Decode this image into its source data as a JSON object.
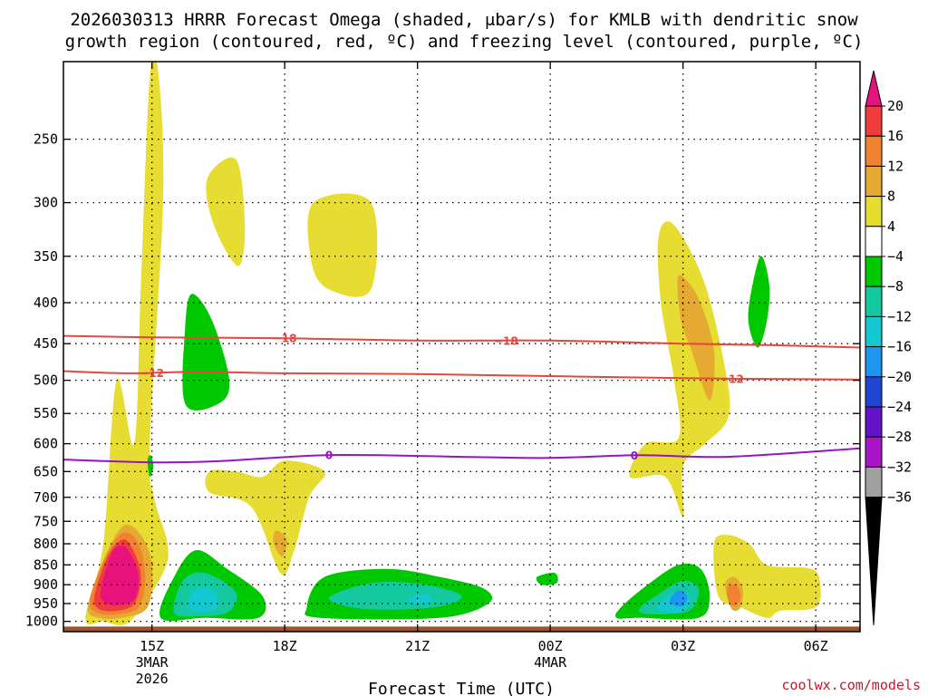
{
  "chart_data": {
    "type": "heatmap",
    "title_line1": "2026030313 HRRR Forecast Omega (shaded, μbar/s) for KMLB with dendritic snow",
    "title_line2": "growth region (contoured, red, ºC) and freezing level (contoured, purple, ºC)",
    "xlabel": "Forecast Time (UTC)",
    "credit": "coolwx.com/models",
    "x_range_hours": [
      13,
      31
    ],
    "x_ticks": [
      {
        "hour": 15,
        "label": "15Z",
        "sub1": "3MAR",
        "sub2": "2026"
      },
      {
        "hour": 18,
        "label": "18Z",
        "sub1": "",
        "sub2": ""
      },
      {
        "hour": 21,
        "label": "21Z",
        "sub1": "",
        "sub2": ""
      },
      {
        "hour": 24,
        "label": "00Z",
        "sub1": "4MAR",
        "sub2": ""
      },
      {
        "hour": 27,
        "label": "03Z",
        "sub1": "",
        "sub2": ""
      },
      {
        "hour": 30,
        "label": "06Z",
        "sub1": "",
        "sub2": ""
      }
    ],
    "y_axis": "pressure (hPa), log scale, inverted",
    "y_range_hpa": [
      200,
      1030
    ],
    "y_ticks": [
      250,
      300,
      350,
      400,
      450,
      500,
      550,
      600,
      650,
      700,
      750,
      800,
      850,
      900,
      950,
      1000
    ],
    "grid": true,
    "colorbar": {
      "levels": [
        20,
        16,
        12,
        8,
        4,
        -4,
        -8,
        -12,
        -16,
        -20,
        -24,
        -28,
        -32,
        -36
      ],
      "labels": [
        "20",
        "16",
        "12",
        "8",
        "4",
        "−4",
        "−8",
        "−12",
        "−16",
        "−20",
        "−24",
        "−28",
        "−32",
        "−36"
      ],
      "over_color": "#e8127c",
      "under_color": "#000000",
      "colors": [
        "#f03c3c",
        "#f08232",
        "#e6aa32",
        "#e6dc32",
        "#ffffff",
        "#00c800",
        "#14c8a0",
        "#14c8d2",
        "#1e96f0",
        "#1e46d2",
        "#6414c8",
        "#aa14c8",
        "#a0a0a0"
      ]
    },
    "contours": [
      {
        "name": "-18 C isotherm",
        "label": "−18",
        "color": "#e8463c",
        "points": [
          [
            13,
            440
          ],
          [
            15,
            442
          ],
          [
            18,
            443
          ],
          [
            21,
            446
          ],
          [
            24,
            446
          ],
          [
            27,
            450
          ],
          [
            29,
            452
          ],
          [
            31,
            455
          ]
        ],
        "label_hours": [
          18,
          23
        ]
      },
      {
        "name": "-12 C isotherm",
        "label": "−12",
        "color": "#e8463c",
        "points": [
          [
            13,
            487
          ],
          [
            14.5,
            490
          ],
          [
            16,
            488
          ],
          [
            18,
            490
          ],
          [
            21,
            491
          ],
          [
            24,
            494
          ],
          [
            27,
            497
          ],
          [
            29,
            498
          ],
          [
            31,
            499
          ]
        ],
        "label_hours": [
          15,
          28.1
        ]
      },
      {
        "name": "freezing level",
        "label": "0",
        "color": "#9614c8",
        "points": [
          [
            13,
            628
          ],
          [
            15,
            633
          ],
          [
            16.5,
            631
          ],
          [
            19,
            620
          ],
          [
            22,
            623
          ],
          [
            24,
            625
          ],
          [
            26,
            620
          ],
          [
            28,
            623
          ],
          [
            31,
            608
          ]
        ],
        "label_hours": [
          19,
          25.9
        ]
      }
    ],
    "omega_areas": [
      {
        "value": 4,
        "color": "#e6dc32",
        "points": [
          [
            13.5,
            990
          ],
          [
            13.9,
            800
          ],
          [
            14.2,
            500
          ],
          [
            14.6,
            600
          ],
          [
            14.75,
            380
          ],
          [
            14.95,
            210
          ],
          [
            15.15,
            208
          ],
          [
            15.25,
            300
          ],
          [
            14.95,
            600
          ],
          [
            15.05,
            700
          ],
          [
            15.35,
            800
          ],
          [
            15.25,
            870
          ],
          [
            14.5,
            1000
          ],
          [
            13.9,
            1000
          ]
        ]
      },
      {
        "value": 8,
        "color": "#e6aa32",
        "points": [
          [
            13.55,
            960
          ],
          [
            13.9,
            840
          ],
          [
            14.35,
            760
          ],
          [
            14.75,
            780
          ],
          [
            15.0,
            850
          ],
          [
            14.9,
            960
          ],
          [
            14.3,
            990
          ],
          [
            13.8,
            990
          ]
        ]
      },
      {
        "value": 12,
        "color": "#f08232",
        "points": [
          [
            13.6,
            940
          ],
          [
            13.95,
            830
          ],
          [
            14.35,
            775
          ],
          [
            14.7,
            800
          ],
          [
            14.85,
            880
          ],
          [
            14.7,
            960
          ],
          [
            14.2,
            980
          ],
          [
            13.75,
            975
          ]
        ]
      },
      {
        "value": 16,
        "color": "#f03c3c",
        "points": [
          [
            13.7,
            930
          ],
          [
            14.0,
            830
          ],
          [
            14.35,
            790
          ],
          [
            14.6,
            820
          ],
          [
            14.75,
            880
          ],
          [
            14.6,
            950
          ],
          [
            14.2,
            970
          ],
          [
            13.8,
            965
          ]
        ]
      },
      {
        "value": 20,
        "color": "#e8127c",
        "points": [
          [
            13.85,
            910
          ],
          [
            14.1,
            820
          ],
          [
            14.35,
            805
          ],
          [
            14.55,
            830
          ],
          [
            14.7,
            880
          ],
          [
            14.6,
            940
          ],
          [
            14.2,
            955
          ],
          [
            13.9,
            945
          ]
        ]
      },
      {
        "value": 4,
        "color": "#e6dc32",
        "points": [
          [
            16.25,
            280
          ],
          [
            16.9,
            265
          ],
          [
            17.1,
            320
          ],
          [
            16.95,
            360
          ],
          [
            16.4,
            320
          ]
        ]
      },
      {
        "value": 4,
        "color": "#e6dc32",
        "points": [
          [
            18.65,
            300
          ],
          [
            19.95,
            300
          ],
          [
            19.95,
            385
          ],
          [
            19.0,
            385
          ],
          [
            18.6,
            355
          ]
        ]
      },
      {
        "value": 4,
        "color": "#e6dc32",
        "points": [
          [
            16.3,
            650
          ],
          [
            16.9,
            650
          ],
          [
            17.5,
            660
          ],
          [
            18.0,
            630
          ],
          [
            18.9,
            650
          ],
          [
            18.55,
            700
          ],
          [
            18.2,
            820
          ],
          [
            17.9,
            870
          ],
          [
            17.25,
            720
          ],
          [
            16.3,
            690
          ]
        ]
      },
      {
        "value": 8,
        "color": "#e6aa32",
        "points": [
          [
            17.8,
            770
          ],
          [
            18.05,
            790
          ],
          [
            17.95,
            830
          ],
          [
            17.75,
            800
          ]
        ]
      },
      {
        "value": -4,
        "color": "#00c800",
        "points": [
          [
            15.9,
            390
          ],
          [
            16.35,
            420
          ],
          [
            16.75,
            500
          ],
          [
            16.5,
            535
          ],
          [
            15.75,
            535
          ],
          [
            15.75,
            430
          ]
        ]
      },
      {
        "value": -4,
        "color": "#00c800",
        "points": [
          [
            14.9,
            630
          ],
          [
            14.97,
            620
          ],
          [
            15.03,
            640
          ],
          [
            14.95,
            660
          ]
        ]
      },
      {
        "value": -4,
        "color": "#00c800",
        "points": [
          [
            15.2,
            990
          ],
          [
            15.5,
            880
          ],
          [
            16.0,
            815
          ],
          [
            16.7,
            860
          ],
          [
            17.5,
            930
          ],
          [
            17.4,
            990
          ],
          [
            16.2,
            990
          ]
        ]
      },
      {
        "value": -8,
        "color": "#14c8a0",
        "points": [
          [
            15.5,
            975
          ],
          [
            15.7,
            890
          ],
          [
            16.2,
            870
          ],
          [
            16.9,
            920
          ],
          [
            16.7,
            975
          ],
          [
            16.0,
            985
          ]
        ]
      },
      {
        "value": -12,
        "color": "#14c8d2",
        "points": [
          [
            15.8,
            960
          ],
          [
            16.0,
            910
          ],
          [
            16.4,
            915
          ],
          [
            16.5,
            955
          ],
          [
            16.2,
            975
          ]
        ]
      },
      {
        "value": -4,
        "color": "#00c800",
        "points": [
          [
            18.5,
            960
          ],
          [
            18.9,
            880
          ],
          [
            20.3,
            860
          ],
          [
            21.5,
            880
          ],
          [
            22.5,
            910
          ],
          [
            22.6,
            950
          ],
          [
            21.5,
            990
          ],
          [
            18.8,
            990
          ]
        ]
      },
      {
        "value": -8,
        "color": "#14c8a0",
        "points": [
          [
            19.0,
            935
          ],
          [
            20.0,
            895
          ],
          [
            21.2,
            900
          ],
          [
            22.0,
            930
          ],
          [
            21.4,
            960
          ],
          [
            19.8,
            965
          ]
        ]
      },
      {
        "value": -12,
        "color": "#14c8d2",
        "points": [
          [
            20.8,
            935
          ],
          [
            21.2,
            925
          ],
          [
            21.3,
            945
          ],
          [
            20.9,
            950
          ]
        ]
      },
      {
        "value": -4,
        "color": "#00c800",
        "points": [
          [
            23.7,
            880
          ],
          [
            24.1,
            870
          ],
          [
            24.15,
            895
          ],
          [
            23.8,
            900
          ]
        ]
      },
      {
        "value": 4,
        "color": "#e6dc32",
        "points": [
          [
            25.8,
            660
          ],
          [
            26.15,
            600
          ],
          [
            26.9,
            590
          ],
          [
            26.8,
            500
          ],
          [
            26.5,
            400
          ],
          [
            26.45,
            330
          ],
          [
            26.8,
            320
          ],
          [
            27.5,
            380
          ],
          [
            28.0,
            500
          ],
          [
            28.0,
            560
          ],
          [
            27.5,
            600
          ],
          [
            27.0,
            640
          ],
          [
            27.0,
            740
          ],
          [
            26.6,
            660
          ]
        ]
      },
      {
        "value": 8,
        "color": "#e6aa32",
        "points": [
          [
            26.9,
            370
          ],
          [
            27.35,
            395
          ],
          [
            27.7,
            460
          ],
          [
            27.6,
            530
          ],
          [
            27.2,
            460
          ],
          [
            26.95,
            420
          ]
        ]
      },
      {
        "value": -4,
        "color": "#00c800",
        "points": [
          [
            28.5,
            400
          ],
          [
            28.75,
            350
          ],
          [
            28.95,
            380
          ],
          [
            28.9,
            420
          ],
          [
            28.7,
            455
          ],
          [
            28.5,
            430
          ]
        ]
      },
      {
        "value": -4,
        "color": "#00c800",
        "points": [
          [
            25.5,
            990
          ],
          [
            25.6,
            960
          ],
          [
            26.2,
            900
          ],
          [
            26.9,
            850
          ],
          [
            27.4,
            860
          ],
          [
            27.6,
            930
          ],
          [
            27.35,
            990
          ],
          [
            26.0,
            990
          ]
        ]
      },
      {
        "value": -8,
        "color": "#14c8a0",
        "points": [
          [
            26.0,
            970
          ],
          [
            26.5,
            920
          ],
          [
            27.0,
            890
          ],
          [
            27.35,
            910
          ],
          [
            27.2,
            965
          ],
          [
            26.6,
            980
          ]
        ]
      },
      {
        "value": -12,
        "color": "#14c8d2",
        "points": [
          [
            26.4,
            960
          ],
          [
            26.8,
            920
          ],
          [
            27.15,
            925
          ],
          [
            27.1,
            960
          ],
          [
            26.8,
            975
          ]
        ]
      },
      {
        "value": -16,
        "color": "#1e96f0",
        "points": [
          [
            26.7,
            940
          ],
          [
            26.9,
            915
          ],
          [
            27.1,
            930
          ],
          [
            27.0,
            955
          ],
          [
            26.8,
            955
          ]
        ]
      },
      {
        "value": 4,
        "color": "#e6dc32",
        "points": [
          [
            27.7,
            800
          ],
          [
            28.0,
            780
          ],
          [
            28.5,
            800
          ],
          [
            28.9,
            850
          ],
          [
            29.9,
            860
          ],
          [
            30.1,
            900
          ],
          [
            30.0,
            960
          ],
          [
            29.2,
            970
          ],
          [
            28.9,
            990
          ],
          [
            28.3,
            960
          ],
          [
            27.8,
            930
          ]
        ]
      },
      {
        "value": 8,
        "color": "#e6aa32",
        "points": [
          [
            27.95,
            900
          ],
          [
            28.15,
            880
          ],
          [
            28.35,
            910
          ],
          [
            28.3,
            960
          ],
          [
            28.1,
            965
          ]
        ]
      },
      {
        "value": 12,
        "color": "#f08232",
        "points": [
          [
            28.0,
            910
          ],
          [
            28.2,
            900
          ],
          [
            28.3,
            930
          ],
          [
            28.2,
            955
          ],
          [
            28.05,
            950
          ]
        ]
      }
    ],
    "terrain_color": "#a0522d"
  }
}
